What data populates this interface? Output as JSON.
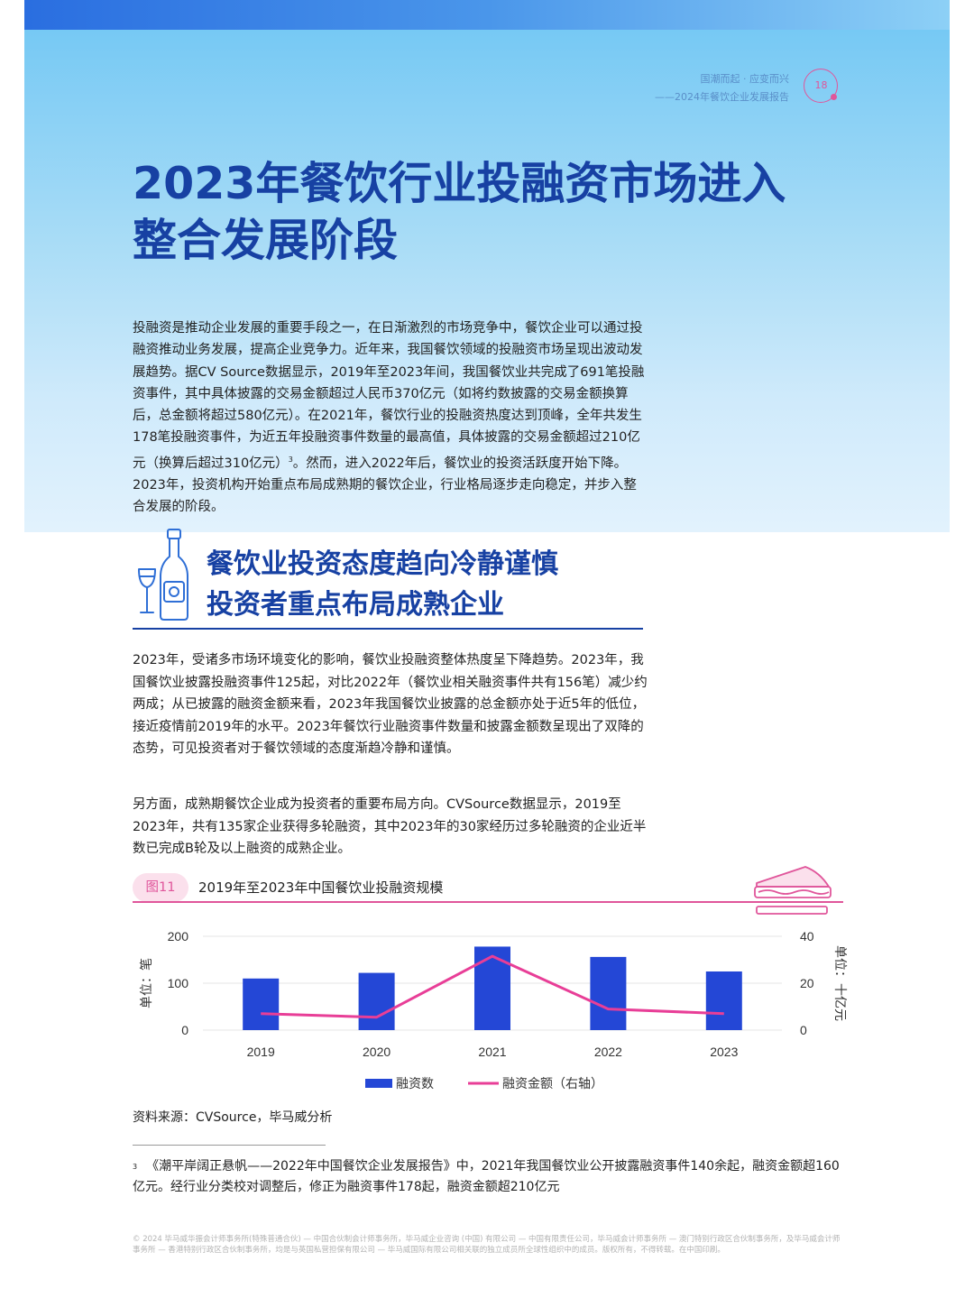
{
  "header": {
    "runhead_line1": "国潮而起 · 应变而兴",
    "runhead_line2": "——2024年餐饮企业发展报告",
    "page_number": "18"
  },
  "title": {
    "line1": "2023年餐饮行业投融资市场进入",
    "line2": "整合发展阶段"
  },
  "intro": {
    "text_before_ref": "投融资是推动企业发展的重要手段之一，在日渐激烈的市场竞争中，餐饮企业可以通过投融资推动业务发展，提高企业竞争力。近年来，我国餐饮领域的投融资市场呈现出波动发展趋势。据CV Source数据显示，2019年至2023年间，我国餐饮业共完成了691笔投融资事件，其中具体披露的交易金额超过人民币370亿元（如将约数披露的交易金额换算后，总金额将超过580亿元）。在2021年，餐饮行业的投融资热度达到顶峰，全年共发生178笔投融资事件，为近五年投融资事件数量的最高值，具体披露的交易金额超过210亿元（换算后超过310亿元）",
    "ref": "3",
    "text_after_ref": "。然而，进入2022年后，餐饮业的投资活跃度开始下降。2023年，投资机构开始重点布局成熟期的餐饮企业，行业格局逐步走向稳定，并步入整合发展的阶段。"
  },
  "section": {
    "title_line1": "餐饮业投资态度趋向冷静谨慎",
    "title_line2": "投资者重点布局成熟企业",
    "icon": "wine-bottle-icon"
  },
  "paragraphs": [
    "2023年，受诸多市场环境变化的影响，餐饮业投融资整体热度呈下降趋势。2023年，我国餐饮业披露投融资事件125起，对比2022年（餐饮业相关融资事件共有156笔）减少约两成；从已披露的融资金额来看，2023年我国餐饮业披露的总金额亦处于近5年的低位，接近疫情前2019年的水平。2023年餐饮行业融资事件数量和披露金额数呈现出了双降的态势，可见投资者对于餐饮领域的态度渐趋冷静和谨慎。",
    "另方面，成熟期餐饮企业成为投资者的重要布局方向。CVSource数据显示，2019至2023年，共有135家企业获得多轮融资，其中2023年的30家经历过多轮融资的企业近半数已完成B轮及以上融资的成熟企业。"
  ],
  "figure": {
    "tag": "图11",
    "title": "2019年至2023年中国餐饮业投融资规模",
    "source": "资料来源：CVSource，毕马威分析"
  },
  "chart_data": {
    "type": "bar",
    "categories": [
      "2019",
      "2020",
      "2021",
      "2022",
      "2023"
    ],
    "series": [
      {
        "name": "融资数",
        "type": "bar",
        "axis": "left",
        "color": "#2447d6",
        "values": [
          110,
          122,
          178,
          156,
          125
        ]
      },
      {
        "name": "融资金额（右轴）",
        "type": "line",
        "axis": "right",
        "color": "#e83e97",
        "values": [
          7,
          5.5,
          31.5,
          9,
          7
        ]
      }
    ],
    "y_left": {
      "label": "单位：笔",
      "min": 0,
      "max": 200,
      "ticks": [
        0,
        100,
        200
      ]
    },
    "y_right": {
      "label": "单位：十亿元",
      "min": 0,
      "max": 40,
      "ticks": [
        0,
        20,
        40
      ]
    },
    "grid": "horizontal",
    "legend_position": "bottom-center"
  },
  "footnote": {
    "marker": "3",
    "text": "《潮平岸阔正悬帆——2022年中国餐饮企业发展报告》中，2021年我国餐饮业公开披露融资事件140余起，融资金额超160亿元。经行业分类校对调整后，修正为融资事件178起，融资金额超210亿元"
  },
  "legal": "© 2024 毕马威华振会计师事务所(特殊普通合伙) — 中国合伙制会计师事务所，毕马威企业咨询 (中国) 有限公司 — 中国有限责任公司，毕马威会计师事务所 — 澳门特别行政区合伙制事务所，及毕马威会计师事务所 — 香港特别行政区合伙制事务所，均是与英国私营担保有限公司 — 毕马威国际有限公司相关联的独立成员所全球性组织中的成员。版权所有，不得转载。在中国印刷。"
}
